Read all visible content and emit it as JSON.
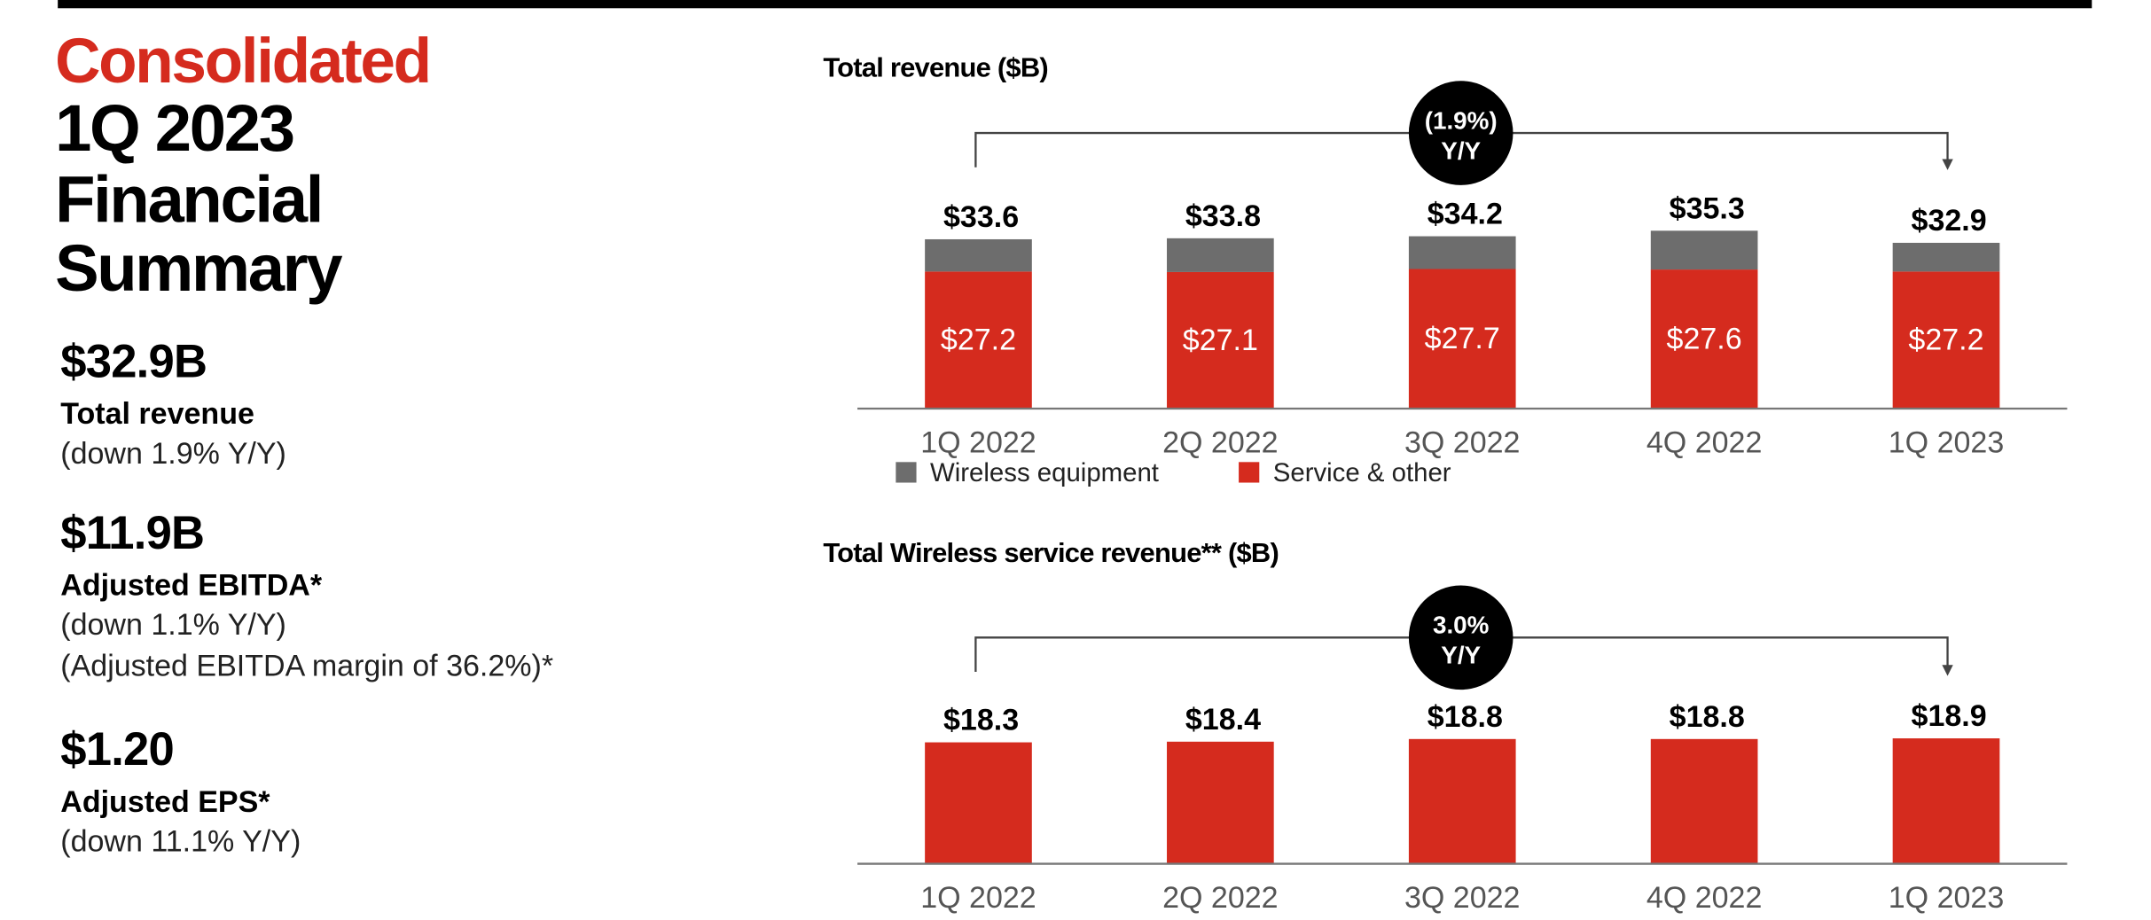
{
  "summary": {
    "title": [
      "Consolidated",
      "1Q 2023",
      "Financial",
      "Summary"
    ],
    "metrics": [
      {
        "value": "$32.9B",
        "label": "Total revenue",
        "notes": [
          "(down 1.9% Y/Y)"
        ]
      },
      {
        "value": "$11.9B",
        "label": "Adjusted EBITDA*",
        "notes": [
          "(down 1.1% Y/Y)",
          "(Adjusted EBITDA margin of 36.2%)*"
        ]
      },
      {
        "value": "$1.20",
        "label": "Adjusted EPS*",
        "notes": [
          "(down 11.1% Y/Y)"
        ]
      }
    ]
  },
  "chart_data": [
    {
      "type": "stacked_bar",
      "title": "Total revenue ($B)",
      "categories": [
        "1Q 2022",
        "2Q 2022",
        "3Q 2022",
        "4Q 2022",
        "1Q 2023"
      ],
      "series": [
        {
          "name": "Service & other",
          "color": "#d52b1e",
          "values": [
            27.2,
            27.1,
            27.7,
            27.6,
            27.2
          ],
          "value_labels": [
            "$27.2",
            "$27.1",
            "$27.7",
            "$27.6",
            "$27.2"
          ]
        },
        {
          "name": "Wireless equipment",
          "color": "#6d6d6d",
          "values": [
            6.4,
            6.7,
            6.5,
            7.7,
            5.7
          ]
        }
      ],
      "totals": {
        "values": [
          33.6,
          33.8,
          34.2,
          35.3,
          32.9
        ],
        "value_labels": [
          "$33.6",
          "$33.8",
          "$34.2",
          "$35.3",
          "$32.9"
        ]
      },
      "annotation": [
        "(1.9%)",
        "Y/Y"
      ],
      "ylim": [
        0,
        40
      ],
      "legend": "bottom-left"
    },
    {
      "type": "bar",
      "title": "Total Wireless service revenue** ($B)",
      "categories": [
        "1Q 2022",
        "2Q 2022",
        "3Q 2022",
        "4Q 2022",
        "1Q 2023"
      ],
      "values": [
        18.3,
        18.4,
        18.8,
        18.8,
        18.9
      ],
      "value_labels": [
        "$18.3",
        "$18.4",
        "$18.8",
        "$18.8",
        "$18.9"
      ],
      "color": "#d52b1e",
      "annotation": [
        "3.0%",
        "Y/Y"
      ],
      "ylim": [
        0,
        25
      ]
    }
  ]
}
